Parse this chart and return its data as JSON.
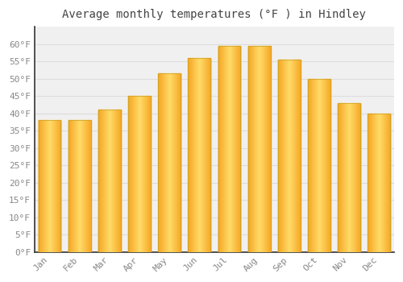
{
  "title": "Average monthly temperatures (°F ) in Hindley",
  "months": [
    "Jan",
    "Feb",
    "Mar",
    "Apr",
    "May",
    "Jun",
    "Jul",
    "Aug",
    "Sep",
    "Oct",
    "Nov",
    "Dec"
  ],
  "values": [
    38,
    38,
    41,
    45,
    51.5,
    56,
    59.5,
    59.5,
    55.5,
    50,
    43,
    40
  ],
  "bar_color_center": "#FFD966",
  "bar_color_edge": "#F5A623",
  "bar_edge_color": "#C8A020",
  "background_color": "#FFFFFF",
  "plot_bg_color": "#F0F0F0",
  "grid_color": "#DDDDDD",
  "tick_label_color": "#888888",
  "title_color": "#444444",
  "ylim": [
    0,
    65
  ],
  "yticks": [
    0,
    5,
    10,
    15,
    20,
    25,
    30,
    35,
    40,
    45,
    50,
    55,
    60
  ],
  "ytick_labels": [
    "0°F",
    "5°F",
    "10°F",
    "15°F",
    "20°F",
    "25°F",
    "30°F",
    "35°F",
    "40°F",
    "45°F",
    "50°F",
    "55°F",
    "60°F"
  ],
  "bar_width": 0.75,
  "figsize": [
    5.0,
    3.5
  ],
  "dpi": 100
}
